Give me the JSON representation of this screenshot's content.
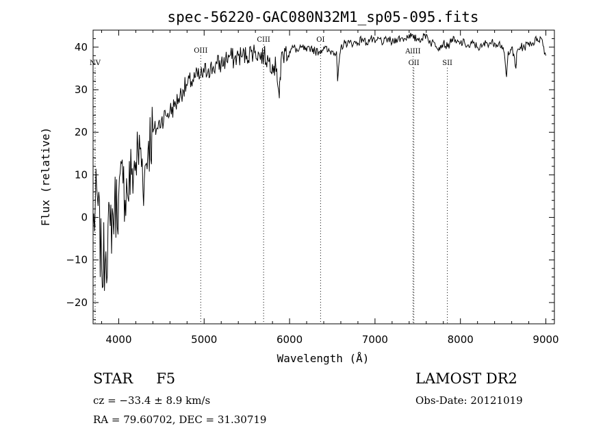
{
  "chart_data": {
    "type": "line",
    "title": "spec-56220-GAC080N32M1_sp05-095.fits",
    "xlabel": "Wavelength (Å)",
    "ylabel": "Flux (relative)",
    "xlim": [
      3700,
      9100
    ],
    "ylim": [
      -25,
      44
    ],
    "xticks": [
      4000,
      5000,
      6000,
      7000,
      8000,
      9000
    ],
    "yticks": [
      -20,
      -10,
      0,
      10,
      20,
      30,
      40
    ],
    "grid": false,
    "series": [
      {
        "x": [
          3700,
          3750,
          3800,
          3850,
          3900,
          3950,
          4000,
          4050,
          4100,
          4150,
          4200,
          4250,
          4300,
          4350,
          4400,
          4450,
          4500,
          4550,
          4600,
          4650,
          4700,
          4750,
          4800,
          4850,
          4900,
          4950,
          5000,
          5050,
          5100,
          5150,
          5200,
          5250,
          5300,
          5350,
          5400,
          5450,
          5500,
          5550,
          5600,
          5650,
          5700,
          5750,
          5800,
          5850,
          5880,
          5900,
          5950,
          6000,
          6050,
          6100,
          6150,
          6200,
          6250,
          6300,
          6350,
          6400,
          6450,
          6500,
          6550,
          6562,
          6600,
          6650,
          6700,
          6750,
          6800,
          6850,
          6900,
          6950,
          7000,
          7050,
          7100,
          7150,
          7200,
          7250,
          7300,
          7350,
          7400,
          7450,
          7500,
          7550,
          7600,
          7650,
          7700,
          7750,
          7800,
          7850,
          7900,
          7950,
          8000,
          8050,
          8100,
          8150,
          8200,
          8250,
          8300,
          8350,
          8400,
          8450,
          8500,
          8540,
          8560,
          8600,
          8650,
          8662,
          8700,
          8750,
          8800,
          8850,
          8900,
          8950,
          9000
        ],
        "values": [
          -2,
          5,
          -12,
          -8,
          -2,
          2,
          5,
          8,
          6,
          10,
          13,
          16,
          9,
          18,
          20,
          21,
          23,
          24,
          25,
          26,
          28,
          30,
          31,
          32,
          33,
          33,
          34,
          35,
          35,
          36,
          36,
          37,
          38,
          37,
          38,
          38,
          38,
          39,
          39,
          38,
          38,
          37,
          36,
          35,
          28,
          37,
          39,
          39,
          40,
          39,
          40,
          39,
          40,
          39,
          39,
          40,
          39,
          39,
          39,
          32,
          40,
          41,
          41,
          41,
          41,
          42,
          41,
          42,
          41,
          42,
          41,
          42,
          41,
          42,
          42,
          42,
          43,
          42,
          42,
          42,
          43,
          41,
          41,
          40,
          41,
          40,
          42,
          41,
          41,
          41,
          40,
          41,
          40,
          40,
          41,
          41,
          41,
          41,
          40,
          33,
          39,
          40,
          35,
          39,
          40,
          40,
          41,
          41,
          42,
          42,
          38
        ]
      }
    ],
    "lines": [
      {
        "label": "NV",
        "x": 3724
      },
      {
        "label": "OIII",
        "x": 4960
      },
      {
        "label": "CIII",
        "x": 5696
      },
      {
        "label": "OI",
        "x": 6363
      },
      {
        "label": "AlIII",
        "x": 7445
      },
      {
        "label": "OII",
        "x": 7455
      },
      {
        "label": "SII",
        "x": 7847
      }
    ]
  },
  "info": {
    "class": "STAR",
    "subclass": "F5",
    "cz": "cz = −33.4 ± 8.9 km/s",
    "coords": "RA =  79.60702, DEC =  31.30719",
    "survey": "LAMOST DR2",
    "obs_date": "Obs-Date: 20121019"
  }
}
